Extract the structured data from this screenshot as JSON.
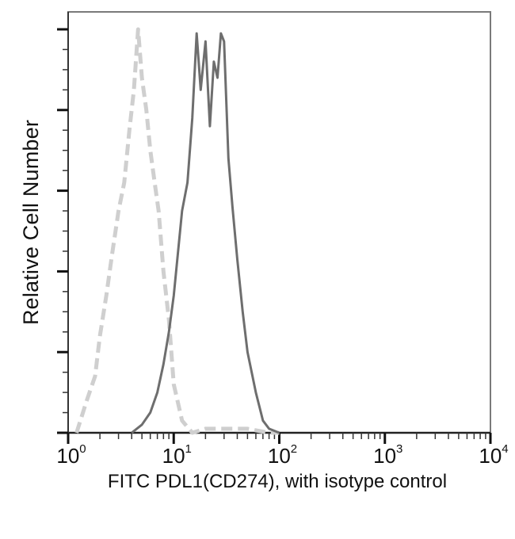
{
  "chart_data": {
    "type": "line",
    "subtype": "flow-cytometry-histogram-overlay",
    "title": "",
    "xlabel": "FITC PDL1(CD274), with isotype control",
    "ylabel": "Relative Cell Number",
    "xscale": "log",
    "xlim": [
      1,
      10000
    ],
    "x_tick_labels": [
      {
        "base": "10",
        "exp": "0"
      },
      {
        "base": "10",
        "exp": "1"
      },
      {
        "base": "10",
        "exp": "2"
      },
      {
        "base": "10",
        "exp": "3"
      },
      {
        "base": "10",
        "exp": "4"
      }
    ],
    "ylim": [
      0,
      100
    ],
    "y_tick_labels": [],
    "grid": false,
    "legend": null,
    "series": [
      {
        "name": "Isotype control",
        "style": "dashed",
        "color": "#cfcfcf",
        "x": [
          1.2,
          1.5,
          1.8,
          2.0,
          2.3,
          2.6,
          3.0,
          3.4,
          3.8,
          4.2,
          4.6,
          5.0,
          5.5,
          6.0,
          6.6,
          7.2,
          8.0,
          9.0,
          10.0,
          12.0,
          15.0,
          20.0,
          30.0,
          50.0,
          80.0,
          100.0
        ],
        "y": [
          0,
          8,
          14,
          24,
          34,
          44,
          55,
          62,
          75,
          85,
          100,
          88,
          80,
          70,
          62,
          55,
          40,
          28,
          12,
          3,
          0,
          1,
          1,
          1,
          0,
          0
        ]
      },
      {
        "name": "PDL1 (CD274)",
        "style": "solid",
        "color": "#6e6e6e",
        "x": [
          4.0,
          5.0,
          6.0,
          7.0,
          8.0,
          9.0,
          10.0,
          11.0,
          12.0,
          13.5,
          15.0,
          16.5,
          18.0,
          20.0,
          22.0,
          24.0,
          26.0,
          28.0,
          30.0,
          33.0,
          36.0,
          40.0,
          45.0,
          50.0,
          60.0,
          70.0,
          80.0,
          100.0
        ],
        "y": [
          0,
          2,
          5,
          10,
          17,
          25,
          34,
          45,
          55,
          62,
          78,
          99,
          85,
          97,
          76,
          92,
          88,
          99,
          97,
          68,
          56,
          43,
          30,
          20,
          10,
          3,
          1,
          0
        ]
      }
    ]
  }
}
